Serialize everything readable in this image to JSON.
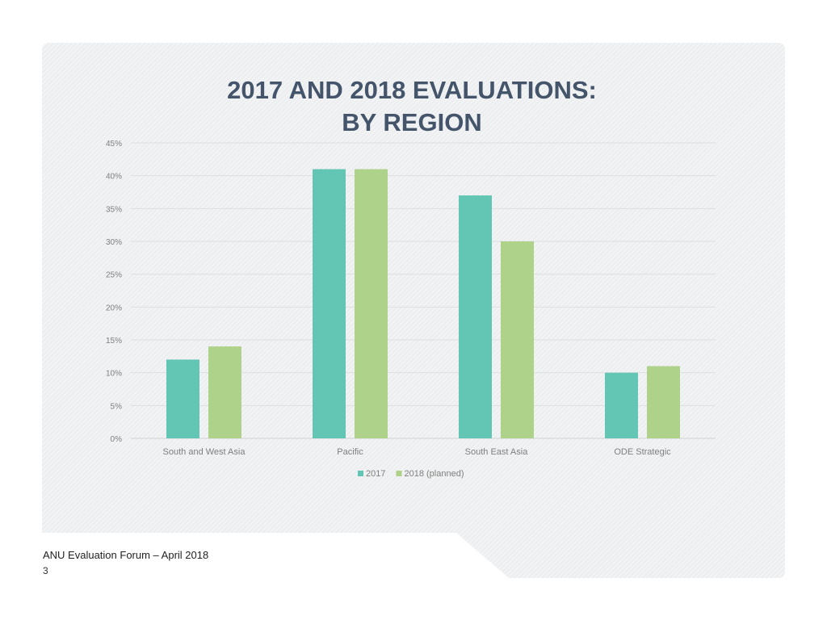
{
  "footer": {
    "text": "ANU Evaluation Forum – April 2018",
    "page_number": "3"
  },
  "chart_data": {
    "type": "bar",
    "title_lines": [
      "2017 AND 2018 EVALUATIONS:",
      "BY REGION"
    ],
    "categories": [
      "South and West Asia",
      "Pacific",
      "South East Asia",
      "ODE Strategic"
    ],
    "series": [
      {
        "name": "2017",
        "values": [
          12,
          41,
          37,
          10
        ],
        "color": "#63c5b4"
      },
      {
        "name": "2018 (planned)",
        "values": [
          14,
          41,
          30,
          11
        ],
        "color": "#aed28a"
      }
    ],
    "yticks": [
      "0%",
      "5%",
      "10%",
      "15%",
      "20%",
      "25%",
      "30%",
      "35%",
      "40%",
      "45%"
    ],
    "ylim": [
      0,
      45
    ],
    "grid": true,
    "legend": "bottom"
  }
}
